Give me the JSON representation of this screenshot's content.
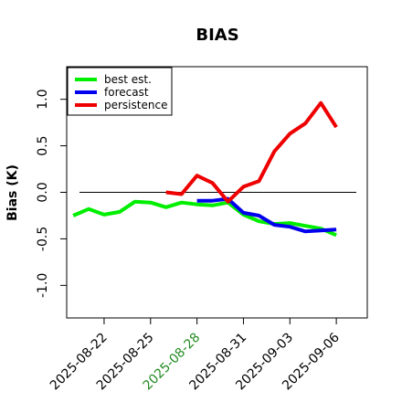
{
  "chart_data": {
    "type": "line",
    "title": "BIAS",
    "xlabel": "",
    "ylabel": "Bias (K)",
    "ylim": [
      -1.35,
      1.35
    ],
    "xlim": [
      "2025-08-19T14:00",
      "2025-09-08T00:00"
    ],
    "y_ticks": [
      "-1.0",
      "-0.5",
      "0.0",
      "0.5",
      "1.0"
    ],
    "x_ticks": [
      {
        "label": "2025-08-22",
        "date": "2025-08-22",
        "color": "#000000"
      },
      {
        "label": "2025-08-25",
        "date": "2025-08-25",
        "color": "#000000"
      },
      {
        "label": "2025-08-28",
        "date": "2025-08-28",
        "color": "#228B22"
      },
      {
        "label": "2025-08-31",
        "date": "2025-08-31",
        "color": "#000000"
      },
      {
        "label": "2025-09-03",
        "date": "2025-09-03",
        "color": "#000000"
      },
      {
        "label": "2025-09-06",
        "date": "2025-09-06",
        "color": "#000000"
      }
    ],
    "reference_line": 0.0,
    "legend_position": "top-left",
    "grid": false,
    "series": [
      {
        "name": "best est.",
        "color": "#00ee00",
        "points": [
          [
            "2025-08-20",
            -0.25
          ],
          [
            "2025-08-21",
            -0.18
          ],
          [
            "2025-08-22",
            -0.24
          ],
          [
            "2025-08-23",
            -0.21
          ],
          [
            "2025-08-24",
            -0.1
          ],
          [
            "2025-08-25",
            -0.11
          ],
          [
            "2025-08-26",
            -0.16
          ],
          [
            "2025-08-27",
            -0.11
          ],
          [
            "2025-08-28",
            -0.13
          ],
          [
            "2025-08-29",
            -0.14
          ],
          [
            "2025-08-30",
            -0.11
          ],
          [
            "2025-08-31",
            -0.24
          ],
          [
            "2025-09-01",
            -0.31
          ],
          [
            "2025-09-02",
            -0.34
          ],
          [
            "2025-09-03",
            -0.33
          ],
          [
            "2025-09-04",
            -0.36
          ],
          [
            "2025-09-05",
            -0.39
          ],
          [
            "2025-09-06",
            -0.46
          ]
        ]
      },
      {
        "name": "forecast",
        "color": "#0000ee",
        "points": [
          [
            "2025-08-28",
            -0.09
          ],
          [
            "2025-08-29",
            -0.09
          ],
          [
            "2025-08-30",
            -0.07
          ],
          [
            "2025-08-31",
            -0.22
          ],
          [
            "2025-09-01",
            -0.25
          ],
          [
            "2025-09-02",
            -0.35
          ],
          [
            "2025-09-03",
            -0.37
          ],
          [
            "2025-09-04",
            -0.42
          ],
          [
            "2025-09-05",
            -0.41
          ],
          [
            "2025-09-06",
            -0.4
          ]
        ]
      },
      {
        "name": "persistence",
        "color": "#ee0000",
        "points": [
          [
            "2025-08-26",
            0.0
          ],
          [
            "2025-08-27",
            -0.02
          ],
          [
            "2025-08-28",
            0.18
          ],
          [
            "2025-08-29",
            0.1
          ],
          [
            "2025-08-30",
            -0.1
          ],
          [
            "2025-08-31",
            0.06
          ],
          [
            "2025-09-01",
            0.12
          ],
          [
            "2025-09-02",
            0.44
          ],
          [
            "2025-09-03",
            0.63
          ],
          [
            "2025-09-04",
            0.74
          ],
          [
            "2025-09-05",
            0.96
          ],
          [
            "2025-09-06",
            0.7
          ]
        ]
      }
    ]
  }
}
